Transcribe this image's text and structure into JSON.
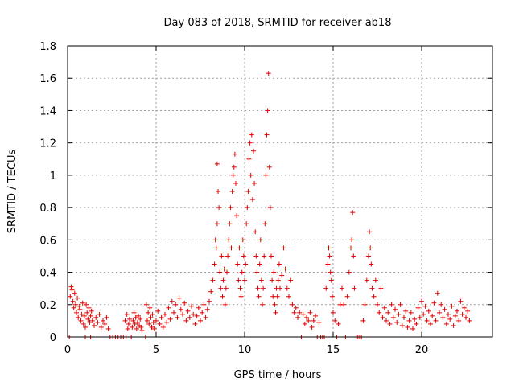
{
  "chart_data": {
    "type": "scatter",
    "title": "Day 083 of 2018, SRMTID for receiver ab18",
    "xlabel": "GPS time / hours",
    "ylabel": "SRMTID / TECUs",
    "xlim": [
      0,
      24
    ],
    "ylim": [
      0,
      1.8
    ],
    "xticks": [
      0,
      5,
      10,
      15,
      20
    ],
    "yticks": [
      0,
      0.2,
      0.4,
      0.6,
      0.8,
      1,
      1.2,
      1.4,
      1.6,
      1.8
    ],
    "ytick_labels": [
      "0",
      "0.2",
      "0.4",
      "0.6",
      "0.8",
      "1",
      "1.2",
      "1.4",
      "1.6",
      "1.8"
    ],
    "grid": true,
    "marker": "+",
    "color": "#e00000",
    "series": [
      {
        "name": "SRMTID",
        "points": [
          [
            0.1,
            0.0
          ],
          [
            0.15,
            0.25
          ],
          [
            0.2,
            0.31
          ],
          [
            0.25,
            0.29
          ],
          [
            0.3,
            0.22
          ],
          [
            0.35,
            0.18
          ],
          [
            0.4,
            0.27
          ],
          [
            0.45,
            0.2
          ],
          [
            0.5,
            0.15
          ],
          [
            0.55,
            0.24
          ],
          [
            0.6,
            0.12
          ],
          [
            0.65,
            0.19
          ],
          [
            0.7,
            0.17
          ],
          [
            0.75,
            0.1
          ],
          [
            0.8,
            0.14
          ],
          [
            0.85,
            0.21
          ],
          [
            0.9,
            0.08
          ],
          [
            0.95,
            0.13
          ],
          [
            1.0,
            0.06
          ],
          [
            1.0,
            0.0
          ],
          [
            1.3,
            0.0
          ],
          [
            1.05,
            0.2
          ],
          [
            1.1,
            0.15
          ],
          [
            1.15,
            0.11
          ],
          [
            1.2,
            0.18
          ],
          [
            1.25,
            0.09
          ],
          [
            1.3,
            0.13
          ],
          [
            1.35,
            0.16
          ],
          [
            1.4,
            0.1
          ],
          [
            1.5,
            0.07
          ],
          [
            1.6,
            0.12
          ],
          [
            1.7,
            0.09
          ],
          [
            1.8,
            0.14
          ],
          [
            1.9,
            0.06
          ],
          [
            2.0,
            0.1
          ],
          [
            2.1,
            0.08
          ],
          [
            2.2,
            0.12
          ],
          [
            2.3,
            0.05
          ],
          [
            2.4,
            0.0
          ],
          [
            2.55,
            0.0
          ],
          [
            2.7,
            0.0
          ],
          [
            2.85,
            0.0
          ],
          [
            3.0,
            0.0
          ],
          [
            3.15,
            0.0
          ],
          [
            3.3,
            0.0
          ],
          [
            3.25,
            0.1
          ],
          [
            3.35,
            0.14
          ],
          [
            3.4,
            0.05
          ],
          [
            3.45,
            0.08
          ],
          [
            3.5,
            0.11
          ],
          [
            3.6,
            0.0
          ],
          [
            3.65,
            0.06
          ],
          [
            3.7,
            0.1
          ],
          [
            3.75,
            0.15
          ],
          [
            3.8,
            0.08
          ],
          [
            3.85,
            0.12
          ],
          [
            3.9,
            0.05
          ],
          [
            3.95,
            0.09
          ],
          [
            4.0,
            0.13
          ],
          [
            4.05,
            0.07
          ],
          [
            4.1,
            0.11
          ],
          [
            4.15,
            0.06
          ],
          [
            4.2,
            0.04
          ],
          [
            4.4,
            0.0
          ],
          [
            4.45,
            0.2
          ],
          [
            4.5,
            0.1
          ],
          [
            4.55,
            0.15
          ],
          [
            4.6,
            0.08
          ],
          [
            4.65,
            0.18
          ],
          [
            4.7,
            0.12
          ],
          [
            4.75,
            0.06
          ],
          [
            4.8,
            0.14
          ],
          [
            4.85,
            0.09
          ],
          [
            4.9,
            0.05
          ],
          [
            5.0,
            0.1
          ],
          [
            5.1,
            0.16
          ],
          [
            5.2,
            0.08
          ],
          [
            5.3,
            0.12
          ],
          [
            5.4,
            0.06
          ],
          [
            5.5,
            0.14
          ],
          [
            5.6,
            0.09
          ],
          [
            5.7,
            0.18
          ],
          [
            5.8,
            0.11
          ],
          [
            5.9,
            0.22
          ],
          [
            6.0,
            0.15
          ],
          [
            6.1,
            0.2
          ],
          [
            6.2,
            0.12
          ],
          [
            6.3,
            0.24
          ],
          [
            6.4,
            0.17
          ],
          [
            6.5,
            0.14
          ],
          [
            6.6,
            0.21
          ],
          [
            6.7,
            0.1
          ],
          [
            6.8,
            0.16
          ],
          [
            6.9,
            0.12
          ],
          [
            7.0,
            0.19
          ],
          [
            7.1,
            0.14
          ],
          [
            7.2,
            0.08
          ],
          [
            7.3,
            0.13
          ],
          [
            7.4,
            0.18
          ],
          [
            7.5,
            0.1
          ],
          [
            7.6,
            0.15
          ],
          [
            7.7,
            0.2
          ],
          [
            7.8,
            0.12
          ],
          [
            7.9,
            0.17
          ],
          [
            8.0,
            0.22
          ],
          [
            8.1,
            0.28
          ],
          [
            8.2,
            0.35
          ],
          [
            8.3,
            0.45
          ],
          [
            8.35,
            0.6
          ],
          [
            8.4,
            0.55
          ],
          [
            8.45,
            0.7
          ],
          [
            8.5,
            0.9
          ],
          [
            8.45,
            1.07
          ],
          [
            8.55,
            0.8
          ],
          [
            8.6,
            0.4
          ],
          [
            8.65,
            0.3
          ],
          [
            8.7,
            0.5
          ],
          [
            8.75,
            0.25
          ],
          [
            8.8,
            0.35
          ],
          [
            8.85,
            0.42
          ],
          [
            8.9,
            0.2
          ],
          [
            8.95,
            0.3
          ],
          [
            9.0,
            0.4
          ],
          [
            9.05,
            0.5
          ],
          [
            9.1,
            0.6
          ],
          [
            9.15,
            0.7
          ],
          [
            9.2,
            0.8
          ],
          [
            9.25,
            0.55
          ],
          [
            9.3,
            0.9
          ],
          [
            9.35,
            1.0
          ],
          [
            9.4,
            1.05
          ],
          [
            9.45,
            1.13
          ],
          [
            9.5,
            0.95
          ],
          [
            9.55,
            0.75
          ],
          [
            9.6,
            0.45
          ],
          [
            9.65,
            0.35
          ],
          [
            9.7,
            0.55
          ],
          [
            9.75,
            0.3
          ],
          [
            9.8,
            0.25
          ],
          [
            9.85,
            0.4
          ],
          [
            9.9,
            0.6
          ],
          [
            9.95,
            0.5
          ],
          [
            10.0,
            0.35
          ],
          [
            10.05,
            0.45
          ],
          [
            10.1,
            0.7
          ],
          [
            10.15,
            0.8
          ],
          [
            10.2,
            0.9
          ],
          [
            10.25,
            1.1
          ],
          [
            10.3,
            1.2
          ],
          [
            10.35,
            1.0
          ],
          [
            10.4,
            1.25
          ],
          [
            10.45,
            0.85
          ],
          [
            10.5,
            1.15
          ],
          [
            10.55,
            0.95
          ],
          [
            10.6,
            0.65
          ],
          [
            10.65,
            0.5
          ],
          [
            10.7,
            0.4
          ],
          [
            10.75,
            0.3
          ],
          [
            10.8,
            0.25
          ],
          [
            10.85,
            0.45
          ],
          [
            10.9,
            0.6
          ],
          [
            10.95,
            0.35
          ],
          [
            11.0,
            0.2
          ],
          [
            11.05,
            0.3
          ],
          [
            11.1,
            0.5
          ],
          [
            11.15,
            0.7
          ],
          [
            11.2,
            1.0
          ],
          [
            11.25,
            1.25
          ],
          [
            11.3,
            1.4
          ],
          [
            11.35,
            1.63
          ],
          [
            11.4,
            1.05
          ],
          [
            11.45,
            0.8
          ],
          [
            11.5,
            0.5
          ],
          [
            11.55,
            0.35
          ],
          [
            11.6,
            0.25
          ],
          [
            11.65,
            0.4
          ],
          [
            11.7,
            0.2
          ],
          [
            11.75,
            0.15
          ],
          [
            11.8,
            0.3
          ],
          [
            11.85,
            0.25
          ],
          [
            11.9,
            0.35
          ],
          [
            11.95,
            0.45
          ],
          [
            12.0,
            0.3
          ],
          [
            12.1,
            0.38
          ],
          [
            12.2,
            0.55
          ],
          [
            12.3,
            0.42
          ],
          [
            12.4,
            0.3
          ],
          [
            12.5,
            0.25
          ],
          [
            12.6,
            0.35
          ],
          [
            12.7,
            0.2
          ],
          [
            12.8,
            0.15
          ],
          [
            12.9,
            0.18
          ],
          [
            13.0,
            0.12
          ],
          [
            13.1,
            0.15
          ],
          [
            13.2,
            0.0
          ],
          [
            13.3,
            0.14
          ],
          [
            13.4,
            0.08
          ],
          [
            13.5,
            0.12
          ],
          [
            13.6,
            0.1
          ],
          [
            13.7,
            0.15
          ],
          [
            13.8,
            0.06
          ],
          [
            13.9,
            0.1
          ],
          [
            14.0,
            0.13
          ],
          [
            14.1,
            0.0
          ],
          [
            14.2,
            0.09
          ],
          [
            14.3,
            0.0
          ],
          [
            14.4,
            0.0
          ],
          [
            14.5,
            0.0
          ],
          [
            14.6,
            0.3
          ],
          [
            14.7,
            0.45
          ],
          [
            14.75,
            0.55
          ],
          [
            14.8,
            0.5
          ],
          [
            14.85,
            0.4
          ],
          [
            14.9,
            0.35
          ],
          [
            14.95,
            0.25
          ],
          [
            15.0,
            0.15
          ],
          [
            15.1,
            0.1
          ],
          [
            15.2,
            0.0
          ],
          [
            15.3,
            0.08
          ],
          [
            15.4,
            0.2
          ],
          [
            15.5,
            0.3
          ],
          [
            15.6,
            0.2
          ],
          [
            15.7,
            0.0
          ],
          [
            15.8,
            0.25
          ],
          [
            15.9,
            0.4
          ],
          [
            16.0,
            0.55
          ],
          [
            16.05,
            0.6
          ],
          [
            16.1,
            0.77
          ],
          [
            16.15,
            0.5
          ],
          [
            16.2,
            0.3
          ],
          [
            16.3,
            0.0
          ],
          [
            16.4,
            0.0
          ],
          [
            16.5,
            0.0
          ],
          [
            16.6,
            0.0
          ],
          [
            16.7,
            0.1
          ],
          [
            16.8,
            0.2
          ],
          [
            16.9,
            0.35
          ],
          [
            17.0,
            0.5
          ],
          [
            17.05,
            0.65
          ],
          [
            17.1,
            0.55
          ],
          [
            17.15,
            0.45
          ],
          [
            17.2,
            0.3
          ],
          [
            17.3,
            0.25
          ],
          [
            17.4,
            0.35
          ],
          [
            17.5,
            0.2
          ],
          [
            17.6,
            0.15
          ],
          [
            17.7,
            0.3
          ],
          [
            17.8,
            0.12
          ],
          [
            17.9,
            0.18
          ],
          [
            18.0,
            0.1
          ],
          [
            18.1,
            0.15
          ],
          [
            18.2,
            0.08
          ],
          [
            18.3,
            0.2
          ],
          [
            18.4,
            0.12
          ],
          [
            18.5,
            0.17
          ],
          [
            18.6,
            0.09
          ],
          [
            18.7,
            0.14
          ],
          [
            18.8,
            0.2
          ],
          [
            18.9,
            0.07
          ],
          [
            19.0,
            0.12
          ],
          [
            19.1,
            0.16
          ],
          [
            19.2,
            0.06
          ],
          [
            19.3,
            0.1
          ],
          [
            19.4,
            0.15
          ],
          [
            19.5,
            0.05
          ],
          [
            19.6,
            0.11
          ],
          [
            19.7,
            0.08
          ],
          [
            19.8,
            0.18
          ],
          [
            19.9,
            0.12
          ],
          [
            20.0,
            0.22
          ],
          [
            20.1,
            0.14
          ],
          [
            20.2,
            0.19
          ],
          [
            20.3,
            0.1
          ],
          [
            20.4,
            0.16
          ],
          [
            20.5,
            0.08
          ],
          [
            20.6,
            0.13
          ],
          [
            20.7,
            0.21
          ],
          [
            20.8,
            0.1
          ],
          [
            20.9,
            0.27
          ],
          [
            21.0,
            0.15
          ],
          [
            21.1,
            0.2
          ],
          [
            21.2,
            0.12
          ],
          [
            21.3,
            0.17
          ],
          [
            21.4,
            0.08
          ],
          [
            21.5,
            0.14
          ],
          [
            21.6,
            0.11
          ],
          [
            21.7,
            0.19
          ],
          [
            21.8,
            0.07
          ],
          [
            21.9,
            0.13
          ],
          [
            22.0,
            0.16
          ],
          [
            22.1,
            0.1
          ],
          [
            22.2,
            0.22
          ],
          [
            22.3,
            0.14
          ],
          [
            22.4,
            0.18
          ],
          [
            22.5,
            0.12
          ],
          [
            22.6,
            0.16
          ],
          [
            22.7,
            0.1
          ]
        ]
      }
    ]
  }
}
